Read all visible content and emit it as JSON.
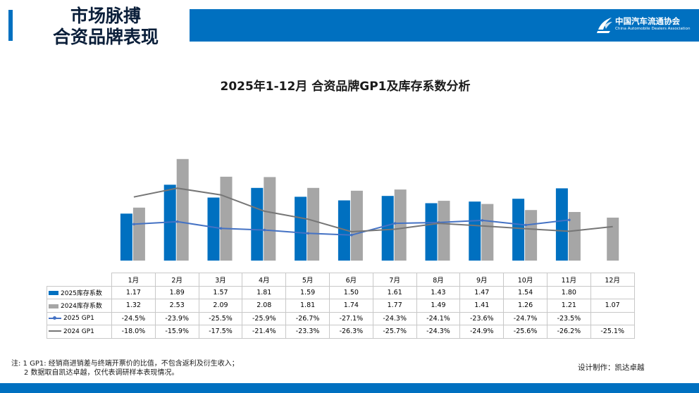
{
  "header": {
    "title_line1": "市场脉搏",
    "title_line2": "合资品牌表现",
    "logo_cn": "中国汽车流通协会",
    "logo_en": "China Automobile Dealers Association"
  },
  "colors": {
    "accent": "#0070c0",
    "bar_2025": "#0070c0",
    "bar_2024": "#a6a6a6",
    "line_2025": "#4472c4",
    "line_2024": "#767676"
  },
  "chart_data": {
    "type": "bar",
    "title": "2025年1-12月 合资品牌GP1及库存系数分析",
    "categories": [
      "1月",
      "2月",
      "3月",
      "4月",
      "5月",
      "6月",
      "7月",
      "8月",
      "9月",
      "10月",
      "11月",
      "12月"
    ],
    "series": [
      {
        "name": "2025库存系数",
        "kind": "bar",
        "values": [
          1.17,
          1.89,
          1.57,
          1.81,
          1.59,
          1.5,
          1.61,
          1.43,
          1.47,
          1.54,
          1.8,
          null
        ],
        "labels": [
          "1.17",
          "1.89",
          "1.57",
          "1.81",
          "1.59",
          "1.50",
          "1.61",
          "1.43",
          "1.47",
          "1.54",
          "1.80",
          ""
        ]
      },
      {
        "name": "2024库存系数",
        "kind": "bar",
        "values": [
          1.32,
          2.53,
          2.09,
          2.08,
          1.81,
          1.74,
          1.77,
          1.49,
          1.41,
          1.26,
          1.21,
          1.07
        ],
        "labels": [
          "1.32",
          "2.53",
          "2.09",
          "2.08",
          "1.81",
          "1.74",
          "1.77",
          "1.49",
          "1.41",
          "1.26",
          "1.21",
          "1.07"
        ]
      },
      {
        "name": "2025 GP1",
        "kind": "line",
        "values": [
          -24.5,
          -23.9,
          -25.5,
          -25.9,
          -26.7,
          -27.1,
          -24.3,
          -24.1,
          -23.6,
          -24.7,
          -23.5,
          null
        ],
        "labels": [
          "-24.5%",
          "-23.9%",
          "-25.5%",
          "-25.9%",
          "-26.7%",
          "-27.1%",
          "-24.3%",
          "-24.1%",
          "-23.6%",
          "-24.7%",
          "-23.5%",
          ""
        ]
      },
      {
        "name": "2024 GP1",
        "kind": "line",
        "values": [
          -18.0,
          -15.9,
          -17.5,
          -21.4,
          -23.3,
          -26.3,
          -25.7,
          -24.3,
          -24.9,
          -25.6,
          -26.2,
          -25.1
        ],
        "labels": [
          "-18.0%",
          "-15.9%",
          "-17.5%",
          "-21.4%",
          "-23.3%",
          "-26.3%",
          "-25.7%",
          "-24.3%",
          "-24.9%",
          "-25.6%",
          "-26.2%",
          "-25.1%"
        ]
      }
    ],
    "bar_axis_range": [
      0,
      2.8
    ],
    "line_axis_range": [
      -29,
      -13
    ],
    "grid": false,
    "legend_placement": "in data table, left"
  },
  "notes": {
    "line1": "注: 1  GP1: 经销商进销差与终端开票价的比值，不包含返利及衍生收入；",
    "line2": "2 数据取自凯达卓越，仅代表调研样本表现情况。"
  },
  "credit": "设计制作：凯达卓越"
}
